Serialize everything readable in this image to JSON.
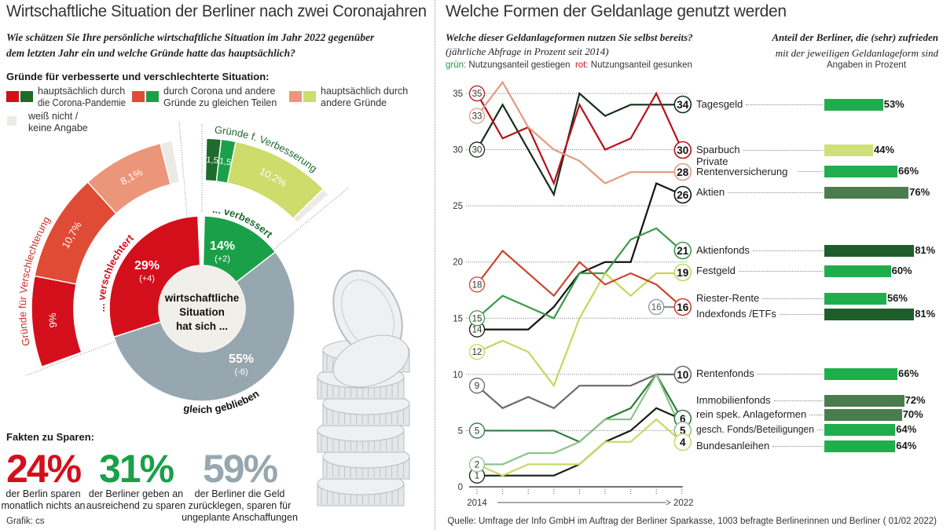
{
  "left": {
    "title": "Wirtschaftliche Situation der Berliner nach zwei Coronajahren",
    "question_line1": "Wie schätzen Sie Ihre persönliche wirtschaftliche Situation im Jahr 2022 gegenüber",
    "question_line2": "dem letzten Jahr ein und welche Gründe hatte das hauptsächlich?",
    "reasons_heading": "Gründe für verbesserte und verschlechterte Situation:",
    "legend": [
      {
        "label_1": "hauptsächlich durch",
        "label_2": "die Corona-Pandemie",
        "color_bad": "#d40f1c",
        "color_good": "#1d6b2d"
      },
      {
        "label_1": "durch Corona und andere",
        "label_2": "Gründe zu gleichen Teilen",
        "color_bad": "#e04b35",
        "color_good": "#1aa048"
      },
      {
        "label_1": "hauptsächlich durch",
        "label_2": "andere Gründe",
        "color_bad": "#eb957a",
        "color_good": "#cddc6a"
      },
      {
        "label_1": "weiß nicht /",
        "label_2": "keine Angabe",
        "color": "#ebebe6"
      }
    ],
    "facts_heading": "Fakten zu Sparen:",
    "facts": [
      {
        "value": "24%",
        "desc_1": "der Berlin sparen",
        "desc_2": "monatlich nichts an",
        "desc_3": "",
        "color": "#d40f1c"
      },
      {
        "value": "31%",
        "desc_1": "der Berliner geben an",
        "desc_2": "ausreichend zu sparen",
        "desc_3": "",
        "color": "#1aa048"
      },
      {
        "value": "59%",
        "desc_1": "der Berliner die Geld",
        "desc_2": "zurücklegen, sparen für",
        "desc_3": "ungeplante Anschaffungen",
        "color": "#97a7b0"
      }
    ],
    "credit": "Grafik: cs"
  },
  "right": {
    "title": "Welche Formen der Geldanlage genutzt werden",
    "question_line1": "Welche dieser Geldanlageformen nutzen Sie selbst bereits?",
    "question_line2": "(jährliche Abfrage in Prozent seit 2014)",
    "legend_green_key": "grün:",
    "legend_green_text": "Nutzungsanteil gestiegen",
    "legend_red_key": "rot:",
    "legend_red_text": "Nutzungsanteil gesunken",
    "satisfaction_title_1": "Anteil der Berliner, die (sehr) zufrieden",
    "satisfaction_title_2": "mit der jeweiligen Geldanlageform sind",
    "satisfaction_unit": "Angaben in Prozent",
    "source": "Quelle: Umfrage der Info GmbH im Auftrag der Berliner Sparkasse, 1003 befragte Berlinerinnen und Berliner ( 01/02 2022)"
  },
  "chart_data": [
    {
      "type": "pie",
      "center_label": [
        "wirtschaftliche",
        "Situation",
        "hat sich ..."
      ],
      "slices": [
        {
          "name": "... verbessert",
          "value": 14,
          "change": "(+2)",
          "color": "#1aa048"
        },
        {
          "name": "gleich geblieben",
          "value": 55,
          "change": "(-6)",
          "color": "#97a7b0"
        },
        {
          "name": "... verschlechtert",
          "value": 29,
          "change": "(+4)",
          "color": "#d40f1c"
        }
      ],
      "reasons_worse": {
        "title": "Gründe für Verschlechterung",
        "segments": [
          {
            "label": "9%",
            "value": 9,
            "color": "#d40f1c"
          },
          {
            "label": "10,7%",
            "value": 10.7,
            "color": "#e04b35"
          },
          {
            "label": "8,1%",
            "value": 8.1,
            "color": "#eb957a"
          },
          {
            "label": "",
            "value": 1.2,
            "color": "#ebebe6"
          }
        ]
      },
      "reasons_better": {
        "title": "Gründe f. Verbesserung",
        "segments": [
          {
            "label": "1,5",
            "value": 1.5,
            "color": "#1d6b2d"
          },
          {
            "label": "1,5",
            "value": 1.5,
            "color": "#1aa048"
          },
          {
            "label": "10,2%",
            "value": 10.2,
            "color": "#cddc6a"
          },
          {
            "label": "",
            "value": 0.8,
            "color": "#ebebe6"
          }
        ]
      }
    },
    {
      "type": "line",
      "x": [
        2014,
        2015,
        2016,
        2017,
        2018,
        2019,
        2020,
        2021,
        2022
      ],
      "x_start_label": "2014",
      "x_end_label": "2022",
      "ylim": [
        0,
        35
      ],
      "yticks": [
        0,
        5,
        10,
        15,
        20,
        25,
        30,
        35
      ],
      "grid": true,
      "series": [
        {
          "name": "Tagesgeld",
          "color": "#14301a",
          "values": [
            30,
            34,
            30,
            26,
            35,
            33,
            34,
            34,
            34
          ]
        },
        {
          "name": "Sparbuch",
          "color": "#b5121b",
          "values": [
            35,
            31,
            32,
            27,
            34,
            30,
            31,
            35,
            30
          ]
        },
        {
          "name": "Private Rentenversicherung",
          "color": "#e39a7c",
          "values": [
            33,
            36,
            32,
            30,
            29,
            27,
            28,
            28,
            28
          ]
        },
        {
          "name": "Aktien",
          "color": "#101510",
          "values": [
            14,
            14,
            14,
            16,
            19,
            20,
            20,
            27,
            26
          ]
        },
        {
          "name": "Aktienfonds",
          "color": "#3a9a4a",
          "values": [
            15,
            17,
            16,
            15,
            19,
            19,
            22,
            23,
            21
          ]
        },
        {
          "name": "Festgeld",
          "color": "#c5d65a",
          "values": [
            12,
            13,
            12,
            9,
            15,
            19,
            17,
            19,
            19
          ]
        },
        {
          "name": "Riester-Rente",
          "color": "#c9462d",
          "values": [
            18,
            21,
            19,
            17,
            20,
            18,
            19,
            18,
            16
          ]
        },
        {
          "name": "Indexfonds /ETFs",
          "color": "#8a969e",
          "values": [
            null,
            null,
            null,
            null,
            null,
            null,
            null,
            16,
            16
          ]
        },
        {
          "name": "Rentenfonds",
          "color": "#6b6b6b",
          "values": [
            9,
            7,
            8,
            7,
            9,
            9,
            9,
            10,
            10
          ]
        },
        {
          "name": "Immobilienfonds",
          "color": "#2e7d3a",
          "values": [
            5,
            5,
            5,
            5,
            4,
            6,
            7,
            10,
            6
          ]
        },
        {
          "name": "rein spek. Anlageformen",
          "color": "#132013",
          "values": [
            1,
            1,
            1,
            1,
            2,
            4,
            5,
            7,
            6
          ]
        },
        {
          "name": "gesch. Fonds/Beteiligungen",
          "color": "#8cc38a",
          "values": [
            2,
            2,
            3,
            3,
            4,
            6,
            6,
            10,
            5
          ]
        },
        {
          "name": "Bundesanleihen",
          "color": "#c8da6a",
          "values": [
            2,
            1,
            2,
            2,
            2,
            4,
            4,
            6,
            4
          ]
        }
      ]
    },
    {
      "type": "bar",
      "unit": "%",
      "categories": [
        "Tagesgeld",
        "Sparbuch",
        "Private Rentenversicherung",
        "Aktien",
        "Aktienfonds",
        "Festgeld",
        "Riester-Rente",
        "Indexfonds /ETFs",
        "Rentenfonds",
        "Immobilienfonds",
        "rein spek. Anlageformen",
        "gesch. Fonds/Beteiligungen",
        "Bundesanleihen"
      ],
      "values": [
        53,
        44,
        66,
        76,
        81,
        60,
        56,
        81,
        66,
        72,
        70,
        64,
        64
      ],
      "colors": [
        "#1fae4b",
        "#cfe07a",
        "#1fae4b",
        "#4a7c4e",
        "#1e5e2a",
        "#1fae4b",
        "#1fae4b",
        "#1e5e2a",
        "#1fae4b",
        "#4a7c4e",
        "#4a7c4e",
        "#1fae4b",
        "#1fae4b"
      ]
    }
  ]
}
